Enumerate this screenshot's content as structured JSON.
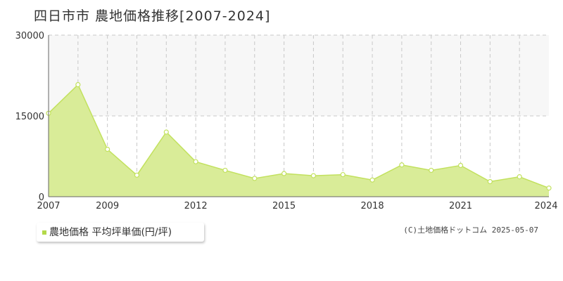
{
  "chart_data": {
    "type": "area",
    "title": "四日市市 農地価格推移[2007-2024]",
    "x": [
      2007,
      2008,
      2009,
      2010,
      2011,
      2012,
      2013,
      2014,
      2015,
      2016,
      2017,
      2018,
      2019,
      2020,
      2021,
      2022,
      2023,
      2024
    ],
    "series": [
      {
        "name": "農地価格 平均坪単価(円/坪)",
        "values": [
          15500,
          20800,
          8800,
          4000,
          12000,
          6500,
          4900,
          3400,
          4300,
          3900,
          4100,
          3100,
          5900,
          4900,
          5800,
          2800,
          3700,
          1600
        ],
        "color": "#b3d94a"
      }
    ],
    "x_ticks": [
      "2007",
      "2009",
      "2012",
      "2015",
      "2018",
      "2021",
      "2024"
    ],
    "x_tick_values": [
      2007,
      2009,
      2012,
      2015,
      2018,
      2021,
      2024
    ],
    "y_ticks": [
      "0",
      "15000",
      "30000"
    ],
    "y_tick_values": [
      0,
      15000,
      30000
    ],
    "xlim": [
      2007,
      2024
    ],
    "ylim": [
      0,
      30000
    ],
    "xlabel": "",
    "ylabel": "",
    "grid": true,
    "legend_position": "bottom-left"
  },
  "legend": {
    "label": "農地価格 平均坪単価(円/坪)"
  },
  "copyright": "(C)土地価格ドットコム 2025-05-07",
  "colors": {
    "fill": "#d9ec98",
    "line": "#c2e15e",
    "grid": "#c8c8c8",
    "band": "#f7f7f7",
    "axis": "#666666"
  }
}
